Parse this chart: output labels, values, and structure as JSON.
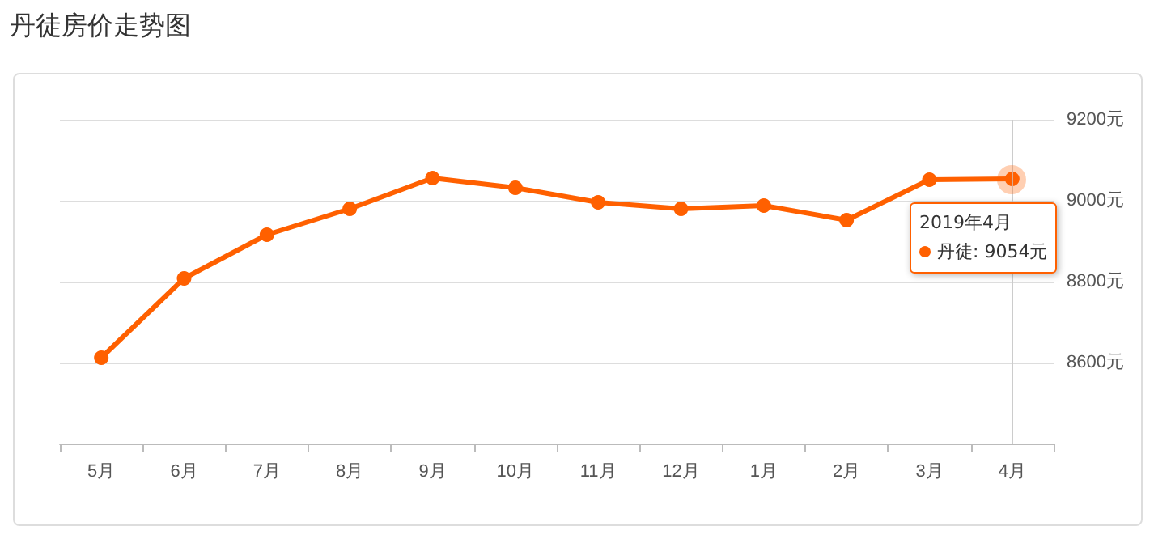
{
  "chart_data": {
    "type": "line",
    "title": "丹徒房价走势图",
    "categories": [
      "5月",
      "6月",
      "7月",
      "8月",
      "9月",
      "10月",
      "11月",
      "12月",
      "1月",
      "2月",
      "3月",
      "4月"
    ],
    "series": [
      {
        "color": "#ff6000",
        "values": [
          8612,
          8808,
          8916,
          8980,
          9056,
          9032,
          8996,
          8980,
          8988,
          8952,
          9052,
          9054
        ]
      }
    ],
    "ylim": [
      8400,
      9200
    ],
    "yticks": [
      {
        "value": 8400,
        "label": null
      },
      {
        "value": 8600,
        "label": "8600元"
      },
      {
        "value": 8800,
        "label": "8800元"
      },
      {
        "value": 9000,
        "label": "9000元"
      },
      {
        "value": 9200,
        "label": "9200元"
      }
    ],
    "grid": "y",
    "marker": "circle",
    "line_style": "solid",
    "ref_lines": [
      {
        "axis": "x",
        "value": "4月",
        "label": null,
        "color": "#cccccc"
      }
    ],
    "annotations": [
      "2019年4月",
      "丹徒: 9054元"
    ]
  }
}
